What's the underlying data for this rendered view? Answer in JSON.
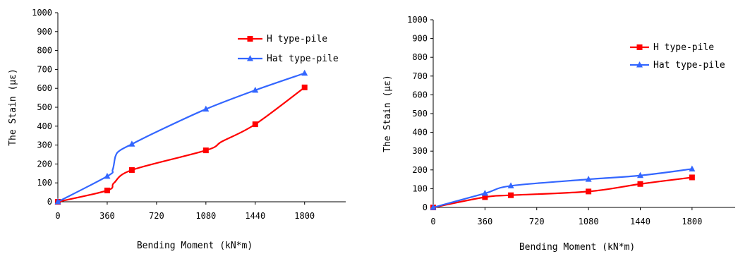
{
  "chart_data": [
    {
      "type": "line",
      "title": "",
      "xlabel": "Bending Moment (kN*m)",
      "ylabel": "The Stain (με)",
      "xlim": [
        0,
        2100
      ],
      "ylim": [
        0,
        1000
      ],
      "xticks": [
        "0",
        "360",
        "720",
        "1080",
        "1440",
        "1800"
      ],
      "yticks": [
        "0",
        "100",
        "200",
        "300",
        "400",
        "500",
        "600",
        "700",
        "800",
        "900",
        "1000"
      ],
      "grid": false,
      "legend_position": "top-right",
      "series": [
        {
          "name": "H type-pile",
          "color": "#ff0000",
          "marker": "square",
          "x": [
            0,
            360,
            410,
            540,
            1080,
            1200,
            1440,
            1800
          ],
          "y": [
            0,
            60,
            100,
            168,
            272,
            320,
            410,
            605
          ]
        },
        {
          "name": "Hat type-pile",
          "color": "#3366ff",
          "marker": "triangle",
          "x": [
            0,
            360,
            400,
            420,
            450,
            540,
            720,
            1080,
            1440,
            1800
          ],
          "y": [
            0,
            135,
            170,
            240,
            270,
            305,
            370,
            490,
            590,
            680
          ]
        }
      ]
    },
    {
      "type": "line",
      "title": "",
      "xlabel": "Bending Moment (kN*m)",
      "ylabel": "The Stain (με)",
      "xlim": [
        0,
        2100
      ],
      "ylim": [
        0,
        1000
      ],
      "xticks": [
        "0",
        "360",
        "720",
        "1080",
        "1440",
        "1800"
      ],
      "yticks": [
        "0",
        "100",
        "200",
        "300",
        "400",
        "500",
        "600",
        "700",
        "800",
        "900",
        "1000"
      ],
      "grid": false,
      "legend_position": "top-right",
      "series": [
        {
          "name": "H type-pile",
          "color": "#ff0000",
          "marker": "square",
          "x": [
            0,
            360,
            540,
            1080,
            1440,
            1800
          ],
          "y": [
            0,
            55,
            65,
            85,
            125,
            160
          ]
        },
        {
          "name": "Hat type-pile",
          "color": "#3366ff",
          "marker": "triangle",
          "x": [
            0,
            360,
            540,
            1080,
            1440,
            1800
          ],
          "y": [
            0,
            75,
            115,
            150,
            170,
            205
          ]
        }
      ]
    }
  ]
}
